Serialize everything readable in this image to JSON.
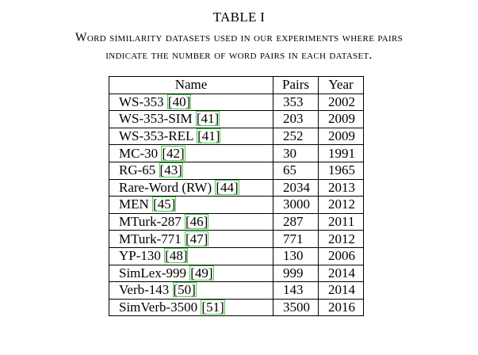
{
  "caption": {
    "title": "TABLE I",
    "line1": "Word similarity datasets used in our experiments where pairs",
    "line2": "indicate the number of word pairs in each dataset."
  },
  "table": {
    "headers": [
      "Name",
      "Pairs",
      "Year"
    ],
    "rows": [
      {
        "name": "WS-353",
        "ref": "[40]",
        "pairs": "353",
        "year": "2002"
      },
      {
        "name": "WS-353-SIM",
        "ref": "[41]",
        "pairs": "203",
        "year": "2009"
      },
      {
        "name": "WS-353-REL",
        "ref": "[41]",
        "pairs": "252",
        "year": "2009"
      },
      {
        "name": "MC-30",
        "ref": "[42]",
        "pairs": "30",
        "year": "1991"
      },
      {
        "name": "RG-65",
        "ref": "[43]",
        "pairs": "65",
        "year": "1965"
      },
      {
        "name": "Rare-Word (RW)",
        "ref": "[44]",
        "pairs": "2034",
        "year": "2013"
      },
      {
        "name": "MEN",
        "ref": "[45]",
        "pairs": "3000",
        "year": "2012"
      },
      {
        "name": "MTurk-287",
        "ref": "[46]",
        "pairs": "287",
        "year": "2011"
      },
      {
        "name": "MTurk-771",
        "ref": "[47]",
        "pairs": "771",
        "year": "2012"
      },
      {
        "name": "YP-130",
        "ref": "[48]",
        "pairs": "130",
        "year": "2006"
      },
      {
        "name": "SimLex-999",
        "ref": "[49]",
        "pairs": "999",
        "year": "2014"
      },
      {
        "name": "Verb-143",
        "ref": "[50]",
        "pairs": "143",
        "year": "2014"
      },
      {
        "name": "SimVerb-3500",
        "ref": "[51]",
        "pairs": "3500",
        "year": "2016"
      }
    ]
  },
  "colors": {
    "citation_box": "#4cd24c"
  }
}
